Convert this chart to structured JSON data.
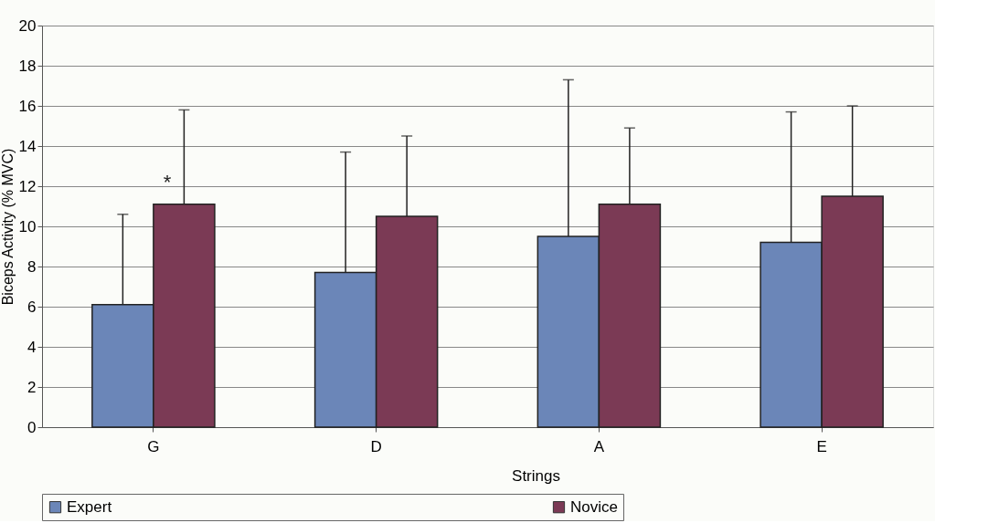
{
  "chart_data": {
    "type": "bar",
    "xlabel": "Strings",
    "ylabel": "Biceps Activity (% MVC)",
    "categories": [
      "G",
      "D",
      "A",
      "E"
    ],
    "series": [
      {
        "name": "Expert",
        "color": "#6b86b8",
        "values": [
          6.1,
          7.7,
          9.5,
          9.2
        ],
        "errors": [
          [
            6.1,
            10.6
          ],
          [
            7.7,
            13.7
          ],
          [
            9.5,
            17.3
          ],
          [
            9.2,
            15.7
          ]
        ]
      },
      {
        "name": "Novice",
        "color": "#7b3a55",
        "values": [
          11.1,
          10.5,
          11.1,
          11.5
        ],
        "errors": [
          [
            11.1,
            15.8
          ],
          [
            10.5,
            14.5
          ],
          [
            11.1,
            14.9
          ],
          [
            11.5,
            16.0
          ]
        ]
      }
    ],
    "ylim": [
      0,
      20
    ],
    "yticks": [
      0,
      2,
      4,
      6,
      8,
      10,
      12,
      14,
      16,
      18,
      20
    ],
    "grid": "y",
    "legend": "bottom",
    "annotations": [
      "*"
    ]
  }
}
